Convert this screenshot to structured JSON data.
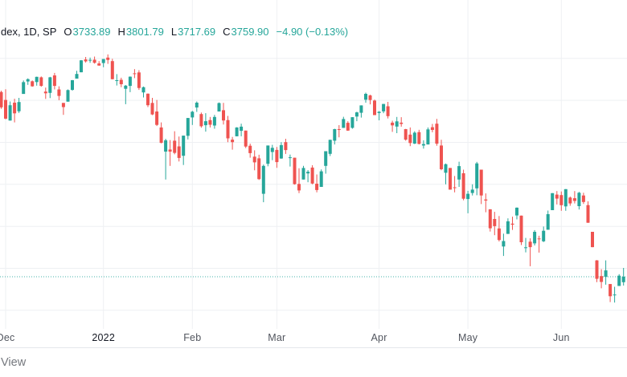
{
  "header": {
    "symbol_text": "dex, 1D, SP",
    "ohlc": [
      {
        "label": "O",
        "value": "3733.89"
      },
      {
        "label": "H",
        "value": "3801.79"
      },
      {
        "label": "L",
        "value": "3717.69"
      },
      {
        "label": "C",
        "value": "3759.90"
      }
    ],
    "change_text": "−4.90 (−0.13%)"
  },
  "watermark": {
    "visible_text": "View"
  },
  "colors": {
    "up": "#26a69a",
    "down": "#ef5350",
    "grid": "#eef0f3",
    "separator": "#e4e7ec",
    "header_text": "#131722",
    "axis_month_text": "#51555e",
    "axis_year_text": "#131722",
    "watermark_text": "#75787e",
    "price_line": "#26a69a"
  },
  "x_axis": {
    "ticks": [
      {
        "label": "Dec",
        "index": 1
      },
      {
        "label": "2022",
        "index": 23,
        "year": true
      },
      {
        "label": "Feb",
        "index": 43
      },
      {
        "label": "Mar",
        "index": 62
      },
      {
        "label": "Apr",
        "index": 85
      },
      {
        "label": "May",
        "index": 105
      },
      {
        "label": "Jun",
        "index": 126
      }
    ]
  },
  "chart_data": {
    "type": "candlestick",
    "title": "dex, 1D, SP",
    "interval": "1D",
    "last_bar": {
      "open": 3733.89,
      "high": 3801.79,
      "low": 3717.69,
      "close": 3759.9,
      "change": -4.9,
      "change_pct": -0.13
    },
    "price_line": 3759.9,
    "grid_prices": [
      4800,
      4600,
      4400,
      4200,
      4000,
      3800,
      3600
    ],
    "x_labels": [
      "Dec",
      "2022",
      "Feb",
      "Mar",
      "Apr",
      "May",
      "Jun"
    ],
    "legend_position": "top-left",
    "grid": true,
    "candles": [
      [
        4640,
        4646,
        4560,
        4567
      ],
      [
        4602,
        4653,
        4510,
        4513
      ],
      [
        4504,
        4595,
        4504,
        4577
      ],
      [
        4589,
        4608,
        4495,
        4538
      ],
      [
        4548,
        4612,
        4540,
        4592
      ],
      [
        4631,
        4695,
        4631,
        4687
      ],
      [
        4690,
        4705,
        4674,
        4701
      ],
      [
        4691,
        4695,
        4665,
        4667
      ],
      [
        4687,
        4713,
        4670,
        4712
      ],
      [
        4710,
        4714,
        4665,
        4669
      ],
      [
        4642,
        4661,
        4607,
        4634
      ],
      [
        4636,
        4712,
        4611,
        4710
      ],
      [
        4719,
        4731,
        4652,
        4669
      ],
      [
        4652,
        4667,
        4601,
        4621
      ],
      [
        4588,
        4588,
        4531,
        4568
      ],
      [
        4594,
        4652,
        4594,
        4649
      ],
      [
        4650,
        4697,
        4646,
        4696
      ],
      [
        4704,
        4741,
        4704,
        4726
      ],
      [
        4734,
        4792,
        4734,
        4791
      ],
      [
        4795,
        4807,
        4780,
        4786
      ],
      [
        4789,
        4804,
        4779,
        4793
      ],
      [
        4794,
        4809,
        4775,
        4779
      ],
      [
        4776,
        4787,
        4765,
        4766
      ],
      [
        4778,
        4797,
        4758,
        4797
      ],
      [
        4804,
        4819,
        4774,
        4793
      ],
      [
        4787,
        4798,
        4700,
        4701
      ],
      [
        4693,
        4725,
        4671,
        4696
      ],
      [
        4698,
        4708,
        4663,
        4677
      ],
      [
        4655,
        4673,
        4582,
        4670
      ],
      [
        4669,
        4714,
        4639,
        4713
      ],
      [
        4729,
        4749,
        4706,
        4726
      ],
      [
        4733,
        4744,
        4650,
        4659
      ],
      [
        4638,
        4666,
        4614,
        4663
      ],
      [
        4632,
        4633,
        4568,
        4577
      ],
      [
        4588,
        4612,
        4530,
        4533
      ],
      [
        4547,
        4602,
        4478,
        4483
      ],
      [
        4471,
        4495,
        4395,
        4398
      ],
      [
        4356,
        4417,
        4223,
        4410
      ],
      [
        4366,
        4411,
        4288,
        4356
      ],
      [
        4408,
        4453,
        4343,
        4350
      ],
      [
        4381,
        4428,
        4309,
        4326
      ],
      [
        4336,
        4432,
        4292,
        4432
      ],
      [
        4431,
        4516,
        4414,
        4516
      ],
      [
        4519,
        4550,
        4483,
        4546
      ],
      [
        4566,
        4595,
        4545,
        4589
      ],
      [
        4535,
        4542,
        4470,
        4477
      ],
      [
        4482,
        4539,
        4451,
        4501
      ],
      [
        4506,
        4521,
        4471,
        4484
      ],
      [
        4480,
        4531,
        4465,
        4521
      ],
      [
        4547,
        4590,
        4547,
        4587
      ],
      [
        4553,
        4588,
        4485,
        4504
      ],
      [
        4506,
        4526,
        4401,
        4419
      ],
      [
        4413,
        4426,
        4365,
        4401
      ],
      [
        4429,
        4472,
        4429,
        4471
      ],
      [
        4455,
        4489,
        4429,
        4475
      ],
      [
        4456,
        4456,
        4373,
        4380
      ],
      [
        4384,
        4394,
        4327,
        4349
      ],
      [
        4332,
        4362,
        4267,
        4305
      ],
      [
        4324,
        4341,
        4221,
        4225
      ],
      [
        4155,
        4294,
        4115,
        4288
      ],
      [
        4298,
        4385,
        4286,
        4385
      ],
      [
        4354,
        4388,
        4315,
        4374
      ],
      [
        4364,
        4378,
        4279,
        4306
      ],
      [
        4323,
        4401,
        4322,
        4387
      ],
      [
        4401,
        4417,
        4345,
        4363
      ],
      [
        4328,
        4342,
        4285,
        4329
      ],
      [
        4327,
        4327,
        4199,
        4201
      ],
      [
        4202,
        4277,
        4158,
        4171
      ],
      [
        4223,
        4288,
        4223,
        4278
      ],
      [
        4252,
        4268,
        4210,
        4260
      ],
      [
        4280,
        4291,
        4200,
        4204
      ],
      [
        4203,
        4247,
        4162,
        4173
      ],
      [
        4188,
        4271,
        4188,
        4262
      ],
      [
        4288,
        4358,
        4251,
        4358
      ],
      [
        4345,
        4412,
        4335,
        4412
      ],
      [
        4408,
        4465,
        4390,
        4463
      ],
      [
        4463,
        4482,
        4424,
        4461
      ],
      [
        4469,
        4522,
        4469,
        4511
      ],
      [
        4493,
        4501,
        4455,
        4456
      ],
      [
        4469,
        4520,
        4465,
        4520
      ],
      [
        4523,
        4546,
        4501,
        4543
      ],
      [
        4541,
        4576,
        4518,
        4576
      ],
      [
        4603,
        4637,
        4589,
        4631
      ],
      [
        4624,
        4627,
        4581,
        4602
      ],
      [
        4599,
        4604,
        4530,
        4530
      ],
      [
        4540,
        4549,
        4505,
        4546
      ],
      [
        4548,
        4583,
        4539,
        4583
      ],
      [
        4572,
        4593,
        4514,
        4525
      ],
      [
        4494,
        4503,
        4450,
        4481
      ],
      [
        4475,
        4521,
        4444,
        4500
      ],
      [
        4494,
        4520,
        4475,
        4488
      ],
      [
        4463,
        4464,
        4408,
        4413
      ],
      [
        4437,
        4471,
        4382,
        4397
      ],
      [
        4394,
        4453,
        4392,
        4446
      ],
      [
        4449,
        4460,
        4390,
        4393
      ],
      [
        4385,
        4410,
        4370,
        4392
      ],
      [
        4390,
        4471,
        4390,
        4462
      ],
      [
        4472,
        4488,
        4448,
        4459
      ],
      [
        4489,
        4512,
        4384,
        4394
      ],
      [
        4385,
        4412,
        4267,
        4272
      ],
      [
        4255,
        4299,
        4200,
        4296
      ],
      [
        4278,
        4278,
        4175,
        4175
      ],
      [
        4186,
        4240,
        4162,
        4184
      ],
      [
        4223,
        4308,
        4188,
        4287
      ],
      [
        4253,
        4270,
        4124,
        4132
      ],
      [
        4130,
        4169,
        4062,
        4155
      ],
      [
        4159,
        4200,
        4147,
        4175
      ],
      [
        4181,
        4307,
        4148,
        4300
      ],
      [
        4270,
        4270,
        4106,
        4147
      ],
      [
        4128,
        4157,
        4067,
        4123
      ],
      [
        4081,
        4082,
        3975,
        3991
      ],
      [
        4035,
        4069,
        3958,
        4001
      ],
      [
        3990,
        4049,
        3928,
        3935
      ],
      [
        3904,
        3965,
        3859,
        3930
      ],
      [
        3964,
        4038,
        3964,
        4024
      ],
      [
        4013,
        4046,
        3983,
        4008
      ],
      [
        4052,
        4090,
        4033,
        4089
      ],
      [
        4051,
        4051,
        3911,
        3924
      ],
      [
        3899,
        3945,
        3876,
        3900
      ],
      [
        3927,
        3943,
        3810,
        3901
      ],
      [
        3919,
        3982,
        3909,
        3974
      ],
      [
        3942,
        3955,
        3875,
        3941
      ],
      [
        3929,
        3999,
        3925,
        3979
      ],
      [
        3984,
        4075,
        3984,
        4058
      ],
      [
        4077,
        4158,
        4077,
        4158
      ],
      [
        4151,
        4168,
        4104,
        4132
      ],
      [
        4149,
        4166,
        4074,
        4101
      ],
      [
        4095,
        4177,
        4074,
        4177
      ],
      [
        4137,
        4142,
        4098,
        4109
      ],
      [
        4134,
        4168,
        4109,
        4121
      ],
      [
        4096,
        4164,
        4080,
        4160
      ],
      [
        4147,
        4160,
        4107,
        4116
      ],
      [
        4101,
        4119,
        4017,
        4017
      ],
      [
        3974,
        3974,
        3900,
        3901
      ],
      [
        3838,
        3839,
        3734,
        3750
      ],
      [
        3763,
        3796,
        3705,
        3735
      ],
      [
        3759,
        3838,
        3722,
        3790
      ],
      [
        3725,
        3725,
        3639,
        3667
      ],
      [
        3673,
        3712,
        3637,
        3675
      ],
      [
        3716,
        3772,
        3716,
        3765
      ],
      [
        3733.89,
        3801.79,
        3717.69,
        3759.9
      ]
    ]
  }
}
